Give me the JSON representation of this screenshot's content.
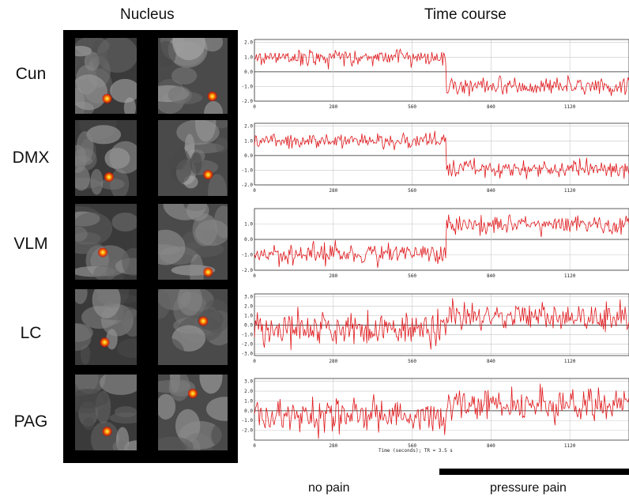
{
  "headers": {
    "nucleus": "Nucleus",
    "time_course": "Time course"
  },
  "rows": [
    {
      "label": "Cun"
    },
    {
      "label": "DMX"
    },
    {
      "label": "VLM"
    },
    {
      "label": "LC"
    },
    {
      "label": "PAG"
    }
  ],
  "x_ticks": [
    "0",
    "280",
    "560",
    "840",
    "1120"
  ],
  "x_caption": "Time (seconds); TR = 3.5 s",
  "conditions": {
    "no_pain": "no pain",
    "pressure_pain": "pressure pain"
  },
  "colors": {
    "trace": "#e0191d",
    "grid": "#c8c8c8",
    "blob": "#ff8a00"
  },
  "chart_data": [
    {
      "type": "line",
      "row": "Cun",
      "xlim": [
        0,
        1330
      ],
      "ylim": [
        -2,
        2.2
      ],
      "yticks": [
        "2.0",
        "1.0",
        "0.0",
        "-1.0",
        "-2.0"
      ],
      "x_ticks": [
        0,
        280,
        560,
        840,
        1120
      ],
      "segments": [
        {
          "x_range": [
            0,
            680
          ],
          "mean": 1.0,
          "noise": 0.3
        },
        {
          "x_range": [
            680,
            1330
          ],
          "mean": -1.0,
          "noise": 0.3
        }
      ]
    },
    {
      "type": "line",
      "row": "DMX",
      "xlim": [
        0,
        1330
      ],
      "ylim": [
        -2,
        2.2
      ],
      "yticks": [
        "2.0",
        "1.0",
        "0.0",
        "-1.0",
        "-2.0"
      ],
      "x_ticks": [
        0,
        280,
        560,
        840,
        1120
      ],
      "segments": [
        {
          "x_range": [
            0,
            680
          ],
          "mean": 1.0,
          "noise": 0.25
        },
        {
          "x_range": [
            680,
            1330
          ],
          "mean": -0.9,
          "noise": 0.3
        }
      ]
    },
    {
      "type": "line",
      "row": "VLM",
      "xlim": [
        0,
        1330
      ],
      "ylim": [
        -2,
        2.0
      ],
      "yticks": [
        "1.0",
        "0.0",
        "-1.0",
        "-2.0"
      ],
      "x_ticks": [
        0,
        280,
        560,
        840,
        1120
      ],
      "segments": [
        {
          "x_range": [
            0,
            680
          ],
          "mean": -0.9,
          "noise": 0.35
        },
        {
          "x_range": [
            680,
            1330
          ],
          "mean": 1.0,
          "noise": 0.3
        }
      ]
    },
    {
      "type": "line",
      "row": "LC",
      "xlim": [
        0,
        1330
      ],
      "ylim": [
        -3.2,
        3.3
      ],
      "yticks": [
        "3.0",
        "2.0",
        "1.0",
        "0.0",
        "-1.0",
        "-2.0",
        "-3.0"
      ],
      "x_ticks": [
        0,
        280,
        560,
        840,
        1120
      ],
      "segments": [
        {
          "x_range": [
            0,
            680
          ],
          "mean": -0.4,
          "noise": 0.9
        },
        {
          "x_range": [
            680,
            1330
          ],
          "mean": 0.8,
          "noise": 0.8
        }
      ]
    },
    {
      "type": "line",
      "row": "PAG",
      "xlim": [
        0,
        1330
      ],
      "ylim": [
        -3.0,
        3.3
      ],
      "yticks": [
        "3.0",
        "2.0",
        "1.0",
        "0.0",
        "-1.0",
        "-2.0"
      ],
      "x_ticks": [
        0,
        280,
        560,
        840,
        1120
      ],
      "segments": [
        {
          "x_range": [
            0,
            680
          ],
          "mean": -0.5,
          "noise": 0.9
        },
        {
          "x_range": [
            680,
            1330
          ],
          "mean": 0.7,
          "noise": 0.8
        }
      ]
    }
  ]
}
